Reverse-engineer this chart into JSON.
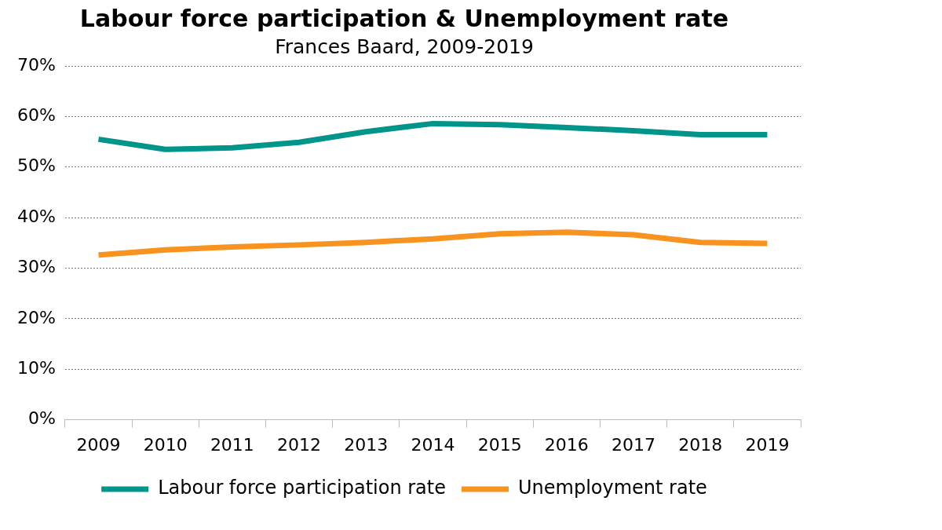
{
  "chart_data": {
    "type": "line",
    "title": "Labour force participation & Unemployment rate",
    "subtitle": "Frances Baard, 2009-2019",
    "categories": [
      "2009",
      "2010",
      "2011",
      "2012",
      "2013",
      "2014",
      "2015",
      "2016",
      "2017",
      "2018",
      "2019"
    ],
    "series": [
      {
        "name": "Labour force participation rate",
        "color": "#00958a",
        "values": [
          55.5,
          53.5,
          53.8,
          54.9,
          57.0,
          58.6,
          58.4,
          57.8,
          57.2,
          56.4,
          56.4
        ]
      },
      {
        "name": "Unemployment rate",
        "color": "#f7931e",
        "values": [
          32.6,
          33.6,
          34.2,
          34.6,
          35.1,
          35.8,
          36.8,
          37.1,
          36.6,
          35.1,
          34.9
        ]
      }
    ],
    "ylim": [
      0,
      70
    ],
    "yticks": [
      {
        "value": 0,
        "label": "0%"
      },
      {
        "value": 10,
        "label": "10%"
      },
      {
        "value": 20,
        "label": "20%"
      },
      {
        "value": 30,
        "label": "30%"
      },
      {
        "value": 40,
        "label": "40%"
      },
      {
        "value": 50,
        "label": "50%"
      },
      {
        "value": 60,
        "label": "60%"
      },
      {
        "value": 70,
        "label": "70%"
      }
    ],
    "grid": "y",
    "legend": "bottom",
    "marker": "none",
    "line_style": "solid"
  }
}
